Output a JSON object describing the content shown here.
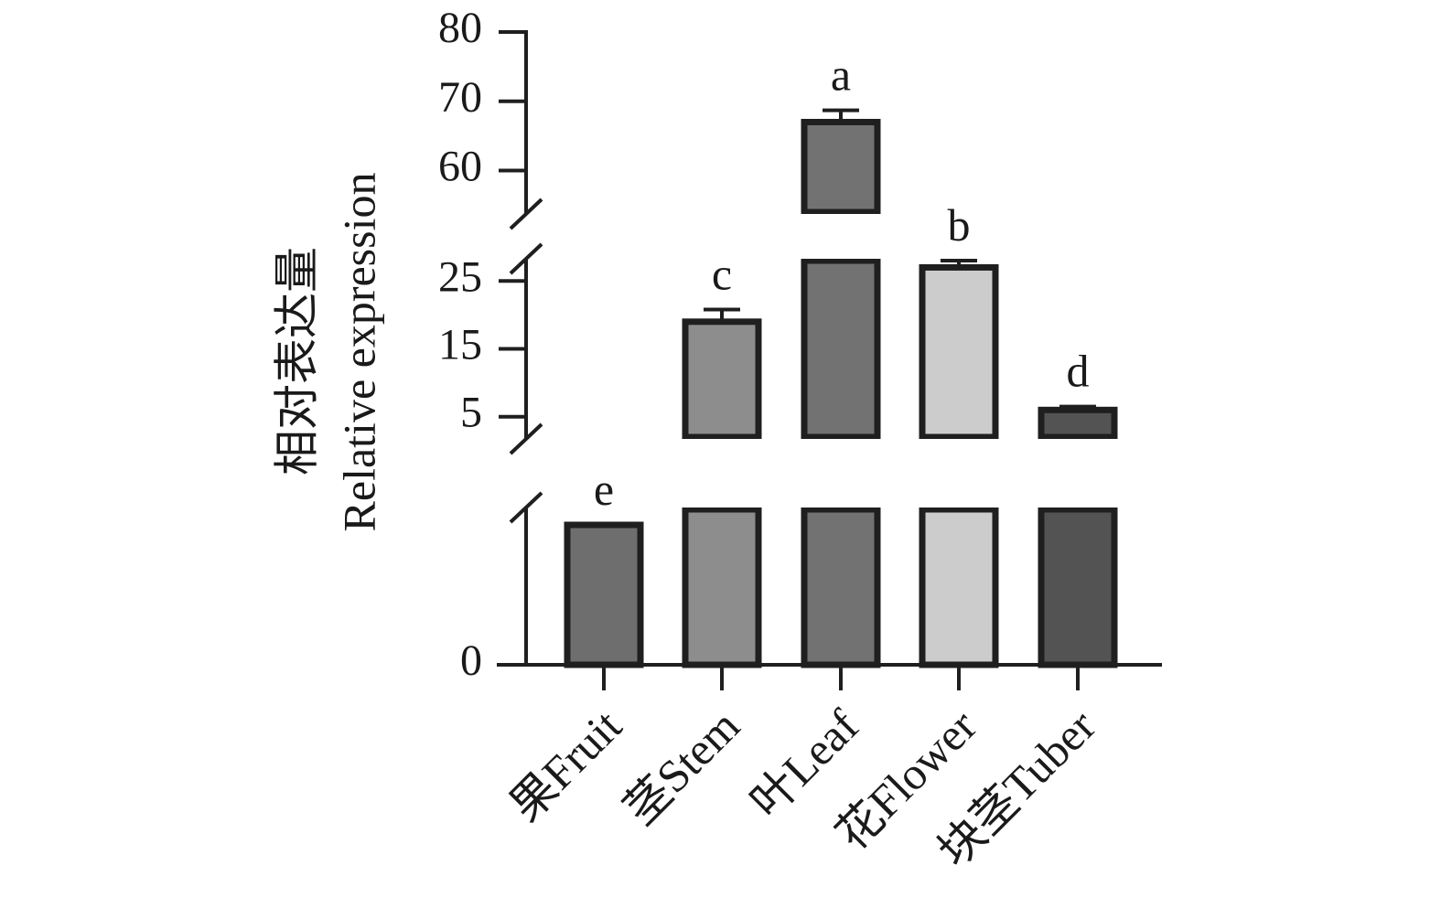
{
  "chart_data": {
    "type": "bar",
    "ylabel_cn": "相对表达量",
    "ylabel_en": "Relative expression",
    "categories": [
      "果Fruit",
      "茎Stem",
      "叶Leaf",
      "花Flower",
      "块茎Tuber"
    ],
    "values": [
      0.9,
      19.0,
      67.0,
      27.0,
      6.0
    ],
    "errors": [
      0.0,
      1.8,
      1.7,
      1.3,
      0.5
    ],
    "significance": [
      "e",
      "c",
      "a",
      "b",
      "d"
    ],
    "colors": [
      "#6e6e6e",
      "#8d8d8d",
      "#727272",
      "#cccccc",
      "#535353"
    ],
    "axis": {
      "segments": [
        {
          "from": 0,
          "to": 1,
          "ticks": [
            0
          ]
        },
        {
          "from": 2,
          "to": 28,
          "ticks": [
            5,
            15,
            25
          ]
        },
        {
          "from": 54,
          "to": 80,
          "ticks": [
            60,
            70,
            80
          ]
        }
      ]
    },
    "tick_labels": [
      "0",
      "5",
      "15",
      "25",
      "60",
      "70",
      "80"
    ]
  }
}
